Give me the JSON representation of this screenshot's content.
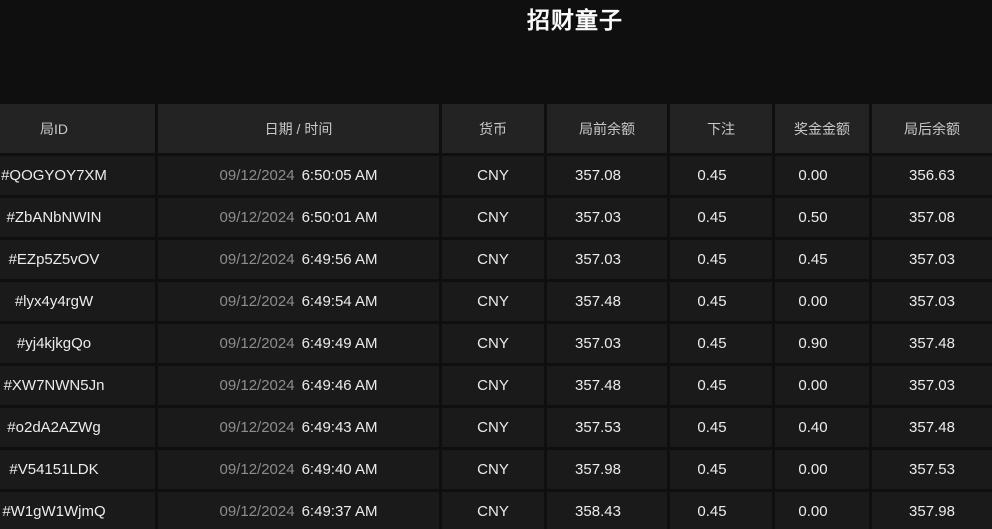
{
  "page": {
    "title": "招财童子"
  },
  "table": {
    "columns": [
      {
        "key": "round-id",
        "label": "局ID"
      },
      {
        "key": "date-time",
        "label": "日期 / 时间"
      },
      {
        "key": "currency",
        "label": "货币"
      },
      {
        "key": "balance-before",
        "label": "局前余额"
      },
      {
        "key": "bet",
        "label": "下注"
      },
      {
        "key": "prize",
        "label": "奖金金额"
      },
      {
        "key": "balance-after",
        "label": "局后余额"
      }
    ],
    "rows": [
      {
        "round_id": "#QOGYOY7XM",
        "date": "09/12/2024",
        "time": "6:50:05 AM",
        "currency": "CNY",
        "balance_before": "357.08",
        "bet": "0.45",
        "prize": "0.00",
        "balance_after": "356.63"
      },
      {
        "round_id": "#ZbANbNWIN",
        "date": "09/12/2024",
        "time": "6:50:01 AM",
        "currency": "CNY",
        "balance_before": "357.03",
        "bet": "0.45",
        "prize": "0.50",
        "balance_after": "357.08"
      },
      {
        "round_id": "#EZp5Z5vOV",
        "date": "09/12/2024",
        "time": "6:49:56 AM",
        "currency": "CNY",
        "balance_before": "357.03",
        "bet": "0.45",
        "prize": "0.45",
        "balance_after": "357.03"
      },
      {
        "round_id": "#lyx4y4rgW",
        "date": "09/12/2024",
        "time": "6:49:54 AM",
        "currency": "CNY",
        "balance_before": "357.48",
        "bet": "0.45",
        "prize": "0.00",
        "balance_after": "357.03"
      },
      {
        "round_id": "#yj4kjkgQo",
        "date": "09/12/2024",
        "time": "6:49:49 AM",
        "currency": "CNY",
        "balance_before": "357.03",
        "bet": "0.45",
        "prize": "0.90",
        "balance_after": "357.48"
      },
      {
        "round_id": "#XW7NWN5Jn",
        "date": "09/12/2024",
        "time": "6:49:46 AM",
        "currency": "CNY",
        "balance_before": "357.48",
        "bet": "0.45",
        "prize": "0.00",
        "balance_after": "357.03"
      },
      {
        "round_id": "#o2dA2AZWg",
        "date": "09/12/2024",
        "time": "6:49:43 AM",
        "currency": "CNY",
        "balance_before": "357.53",
        "bet": "0.45",
        "prize": "0.40",
        "balance_after": "357.48"
      },
      {
        "round_id": "#V54151LDK",
        "date": "09/12/2024",
        "time": "6:49:40 AM",
        "currency": "CNY",
        "balance_before": "357.98",
        "bet": "0.45",
        "prize": "0.00",
        "balance_after": "357.53"
      },
      {
        "round_id": "#W1gW1WjmQ",
        "date": "09/12/2024",
        "time": "6:49:37 AM",
        "currency": "CNY",
        "balance_before": "358.43",
        "bet": "0.45",
        "prize": "0.00",
        "balance_after": "357.98"
      }
    ]
  },
  "colors": {
    "page_bg": "#0f0f0f",
    "header_bg": "#232323",
    "row_bg": "#1a1a1a",
    "text_primary": "#ececec",
    "text_header": "#c9c9c9",
    "text_date": "#8d8d8d",
    "title": "#fafafa"
  }
}
